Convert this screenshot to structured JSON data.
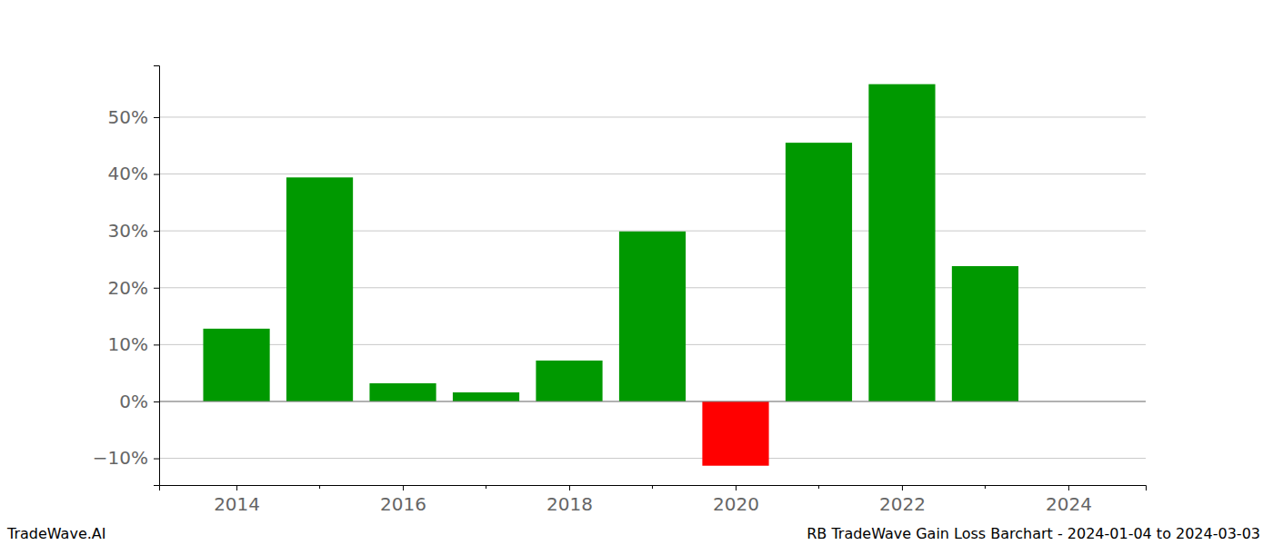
{
  "chart_data": {
    "type": "bar",
    "title": "RB TradeWave Gain Loss Barchart - 2024-01-04 to 2024-03-03",
    "annotations": [
      "TradeWave.AI"
    ],
    "x": [
      2014,
      2015,
      2016,
      2017,
      2018,
      2019,
      2020,
      2021,
      2022,
      2023
    ],
    "values": [
      12.8,
      39.4,
      3.2,
      1.6,
      7.2,
      29.9,
      -11.3,
      45.5,
      55.8,
      23.8
    ],
    "colors": [
      "#009900",
      "#009900",
      "#009900",
      "#009900",
      "#009900",
      "#009900",
      "#ff0000",
      "#009900",
      "#009900",
      "#009900"
    ],
    "xlim": [
      2013.07,
      2024.93
    ],
    "xticks": [
      2014,
      2016,
      2018,
      2020,
      2022,
      2024
    ],
    "ylim": [
      -14.7,
      59.1
    ],
    "yticks": [
      {
        "value": -10,
        "label": "−10%"
      },
      {
        "value": 0,
        "label": "0%"
      },
      {
        "value": 10,
        "label": "10%"
      },
      {
        "value": 20,
        "label": "20%"
      },
      {
        "value": 30,
        "label": "30%"
      },
      {
        "value": 40,
        "label": "40%"
      },
      {
        "value": 50,
        "label": "50%"
      }
    ],
    "grid": true
  }
}
